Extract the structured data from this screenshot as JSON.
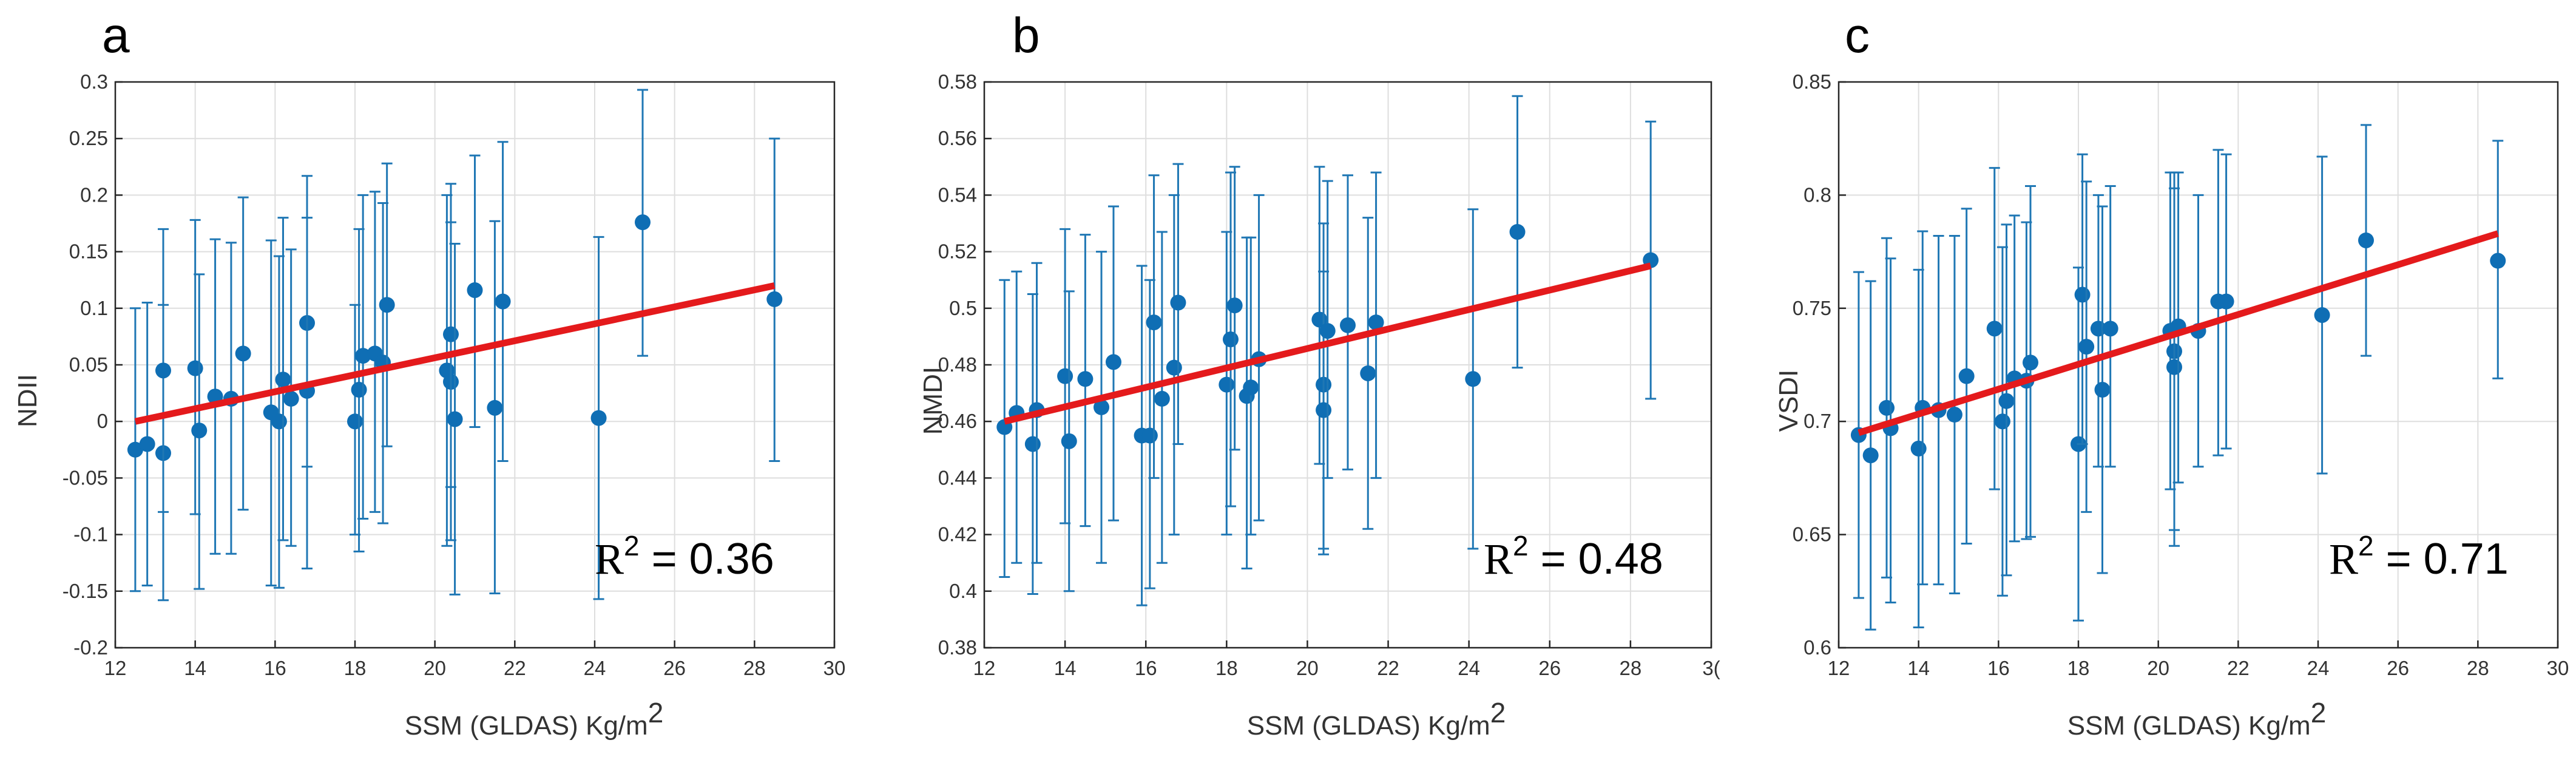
{
  "colors": {
    "marker": "#0f6eb4",
    "errorbar": "#1f77b4",
    "fit": "#e41a1c",
    "grid": "#dedede"
  },
  "chart_data": [
    {
      "type": "scatter",
      "panel": "a",
      "xlabel": "SSM (GLDAS) Kg/m",
      "xlabel_sup": "2",
      "ylabel": "NDII",
      "xlim": [
        12,
        30
      ],
      "ylim": [
        -0.2,
        0.3
      ],
      "xticks": [
        "12",
        "14",
        "16",
        "18",
        "20",
        "22",
        "24",
        "26",
        "28",
        "30"
      ],
      "yticks": [
        "-0.2",
        "-0.15",
        "-0.1",
        "-0.05",
        "0",
        "0.05",
        "0.1",
        "0.15",
        "0.2",
        "0.25",
        "0.3"
      ],
      "grid": true,
      "r2_text": "R",
      "r2_sup": "2",
      "r2_value": " = 0.36",
      "fit_line": {
        "x": [
          12.5,
          28.5
        ],
        "y": [
          0.0,
          0.12
        ]
      },
      "points": [
        {
          "x": 12.5,
          "y": -0.025,
          "lo": -0.15,
          "hi": 0.1
        },
        {
          "x": 12.8,
          "y": -0.02,
          "lo": -0.145,
          "hi": 0.105
        },
        {
          "x": 13.2,
          "y": -0.028,
          "lo": -0.158,
          "hi": 0.103
        },
        {
          "x": 13.2,
          "y": 0.045,
          "lo": -0.08,
          "hi": 0.17
        },
        {
          "x": 14.0,
          "y": 0.047,
          "lo": -0.082,
          "hi": 0.178
        },
        {
          "x": 14.1,
          "y": -0.008,
          "lo": -0.148,
          "hi": 0.13
        },
        {
          "x": 14.5,
          "y": 0.022,
          "lo": -0.117,
          "hi": 0.161
        },
        {
          "x": 14.9,
          "y": 0.02,
          "lo": -0.117,
          "hi": 0.158
        },
        {
          "x": 15.2,
          "y": 0.06,
          "lo": -0.078,
          "hi": 0.198
        },
        {
          "x": 15.9,
          "y": 0.008,
          "lo": -0.145,
          "hi": 0.16
        },
        {
          "x": 16.1,
          "y": 0.0,
          "lo": -0.147,
          "hi": 0.146
        },
        {
          "x": 16.2,
          "y": 0.037,
          "lo": -0.105,
          "hi": 0.18
        },
        {
          "x": 16.4,
          "y": 0.02,
          "lo": -0.11,
          "hi": 0.152
        },
        {
          "x": 16.8,
          "y": 0.087,
          "lo": -0.04,
          "hi": 0.217
        },
        {
          "x": 16.8,
          "y": 0.027,
          "lo": -0.13,
          "hi": 0.18
        },
        {
          "x": 18.0,
          "y": 0.0,
          "lo": -0.1,
          "hi": 0.103
        },
        {
          "x": 18.1,
          "y": 0.028,
          "lo": -0.115,
          "hi": 0.17
        },
        {
          "x": 18.2,
          "y": 0.058,
          "lo": -0.086,
          "hi": 0.2
        },
        {
          "x": 18.5,
          "y": 0.06,
          "lo": -0.08,
          "hi": 0.203
        },
        {
          "x": 18.7,
          "y": 0.052,
          "lo": -0.09,
          "hi": 0.193
        },
        {
          "x": 18.8,
          "y": 0.103,
          "lo": -0.022,
          "hi": 0.228
        },
        {
          "x": 20.3,
          "y": 0.045,
          "lo": -0.11,
          "hi": 0.2
        },
        {
          "x": 20.4,
          "y": 0.035,
          "lo": -0.105,
          "hi": 0.176
        },
        {
          "x": 20.4,
          "y": 0.077,
          "lo": -0.058,
          "hi": 0.21
        },
        {
          "x": 20.5,
          "y": 0.002,
          "lo": -0.153,
          "hi": 0.157
        },
        {
          "x": 21.0,
          "y": 0.116,
          "lo": -0.005,
          "hi": 0.235
        },
        {
          "x": 21.5,
          "y": 0.012,
          "lo": -0.152,
          "hi": 0.177
        },
        {
          "x": 21.7,
          "y": 0.106,
          "lo": -0.035,
          "hi": 0.247
        },
        {
          "x": 24.1,
          "y": 0.003,
          "lo": -0.157,
          "hi": 0.163
        },
        {
          "x": 25.2,
          "y": 0.176,
          "lo": 0.058,
          "hi": 0.293
        },
        {
          "x": 28.5,
          "y": 0.108,
          "lo": -0.035,
          "hi": 0.25
        }
      ]
    },
    {
      "type": "scatter",
      "panel": "b",
      "xlabel": "SSM (GLDAS) Kg/m",
      "xlabel_sup": "2",
      "ylabel": "NMDI",
      "xlim": [
        12,
        30
      ],
      "ylim": [
        0.38,
        0.58
      ],
      "xticks": [
        "12",
        "14",
        "16",
        "18",
        "20",
        "22",
        "24",
        "26",
        "28",
        "3("
      ],
      "yticks": [
        "0.38",
        "0.4",
        "0.42",
        "0.44",
        "0.46",
        "0.48",
        "0.5",
        "0.52",
        "0.54",
        "0.56",
        "0.58"
      ],
      "grid": true,
      "r2_text": "R",
      "r2_sup": "2",
      "r2_value": " = 0.48",
      "fit_line": {
        "x": [
          12.5,
          28.5
        ],
        "y": [
          0.46,
          0.515
        ]
      },
      "points": [
        {
          "x": 12.5,
          "y": 0.458,
          "lo": 0.405,
          "hi": 0.51
        },
        {
          "x": 12.8,
          "y": 0.463,
          "lo": 0.41,
          "hi": 0.513
        },
        {
          "x": 13.2,
          "y": 0.452,
          "lo": 0.399,
          "hi": 0.505
        },
        {
          "x": 13.3,
          "y": 0.464,
          "lo": 0.41,
          "hi": 0.516
        },
        {
          "x": 14.0,
          "y": 0.476,
          "lo": 0.424,
          "hi": 0.528
        },
        {
          "x": 14.1,
          "y": 0.453,
          "lo": 0.4,
          "hi": 0.506
        },
        {
          "x": 14.5,
          "y": 0.475,
          "lo": 0.423,
          "hi": 0.526
        },
        {
          "x": 14.9,
          "y": 0.465,
          "lo": 0.41,
          "hi": 0.52
        },
        {
          "x": 15.2,
          "y": 0.481,
          "lo": 0.425,
          "hi": 0.536
        },
        {
          "x": 15.9,
          "y": 0.455,
          "lo": 0.395,
          "hi": 0.515
        },
        {
          "x": 16.1,
          "y": 0.455,
          "lo": 0.401,
          "hi": 0.51
        },
        {
          "x": 16.2,
          "y": 0.495,
          "lo": 0.44,
          "hi": 0.547
        },
        {
          "x": 16.4,
          "y": 0.468,
          "lo": 0.41,
          "hi": 0.527
        },
        {
          "x": 16.7,
          "y": 0.479,
          "lo": 0.42,
          "hi": 0.54
        },
        {
          "x": 16.8,
          "y": 0.502,
          "lo": 0.452,
          "hi": 0.551
        },
        {
          "x": 18.0,
          "y": 0.473,
          "lo": 0.42,
          "hi": 0.527
        },
        {
          "x": 18.1,
          "y": 0.489,
          "lo": 0.43,
          "hi": 0.548
        },
        {
          "x": 18.2,
          "y": 0.501,
          "lo": 0.45,
          "hi": 0.55
        },
        {
          "x": 18.5,
          "y": 0.469,
          "lo": 0.408,
          "hi": 0.525
        },
        {
          "x": 18.6,
          "y": 0.472,
          "lo": 0.42,
          "hi": 0.525
        },
        {
          "x": 18.8,
          "y": 0.482,
          "lo": 0.425,
          "hi": 0.54
        },
        {
          "x": 20.3,
          "y": 0.496,
          "lo": 0.445,
          "hi": 0.55
        },
        {
          "x": 20.4,
          "y": 0.473,
          "lo": 0.413,
          "hi": 0.53
        },
        {
          "x": 20.4,
          "y": 0.464,
          "lo": 0.415,
          "hi": 0.513
        },
        {
          "x": 20.5,
          "y": 0.492,
          "lo": 0.44,
          "hi": 0.545
        },
        {
          "x": 21.0,
          "y": 0.494,
          "lo": 0.443,
          "hi": 0.547
        },
        {
          "x": 21.5,
          "y": 0.477,
          "lo": 0.422,
          "hi": 0.532
        },
        {
          "x": 21.7,
          "y": 0.495,
          "lo": 0.44,
          "hi": 0.548
        },
        {
          "x": 24.1,
          "y": 0.475,
          "lo": 0.415,
          "hi": 0.535
        },
        {
          "x": 25.2,
          "y": 0.527,
          "lo": 0.479,
          "hi": 0.575
        },
        {
          "x": 28.5,
          "y": 0.517,
          "lo": 0.468,
          "hi": 0.566
        }
      ]
    },
    {
      "type": "scatter",
      "panel": "c",
      "xlabel": "SSM (GLDAS) Kg/m",
      "xlabel_sup": "2",
      "ylabel": "VSDI",
      "xlim": [
        12,
        30
      ],
      "ylim": [
        0.6,
        0.85
      ],
      "xticks": [
        "12",
        "14",
        "16",
        "18",
        "20",
        "22",
        "24",
        "26",
        "28",
        "30"
      ],
      "yticks": [
        "0.6",
        "0.65",
        "0.7",
        "0.75",
        "0.8",
        "0.85"
      ],
      "grid": true,
      "r2_text": "R",
      "r2_sup": "2",
      "r2_value": " = 0.71",
      "fit_line": {
        "x": [
          12.5,
          28.5
        ],
        "y": [
          0.695,
          0.783
        ]
      },
      "points": [
        {
          "x": 12.5,
          "y": 0.694,
          "lo": 0.622,
          "hi": 0.766
        },
        {
          "x": 12.8,
          "y": 0.685,
          "lo": 0.608,
          "hi": 0.762
        },
        {
          "x": 13.2,
          "y": 0.706,
          "lo": 0.631,
          "hi": 0.781
        },
        {
          "x": 13.3,
          "y": 0.697,
          "lo": 0.62,
          "hi": 0.772
        },
        {
          "x": 14.0,
          "y": 0.688,
          "lo": 0.609,
          "hi": 0.767
        },
        {
          "x": 14.1,
          "y": 0.706,
          "lo": 0.628,
          "hi": 0.784
        },
        {
          "x": 14.5,
          "y": 0.705,
          "lo": 0.628,
          "hi": 0.782
        },
        {
          "x": 14.9,
          "y": 0.703,
          "lo": 0.624,
          "hi": 0.782
        },
        {
          "x": 15.2,
          "y": 0.72,
          "lo": 0.646,
          "hi": 0.794
        },
        {
          "x": 15.9,
          "y": 0.741,
          "lo": 0.67,
          "hi": 0.812
        },
        {
          "x": 16.1,
          "y": 0.7,
          "lo": 0.623,
          "hi": 0.777
        },
        {
          "x": 16.2,
          "y": 0.709,
          "lo": 0.632,
          "hi": 0.787
        },
        {
          "x": 16.4,
          "y": 0.719,
          "lo": 0.647,
          "hi": 0.791
        },
        {
          "x": 16.7,
          "y": 0.718,
          "lo": 0.648,
          "hi": 0.788
        },
        {
          "x": 16.8,
          "y": 0.726,
          "lo": 0.649,
          "hi": 0.804
        },
        {
          "x": 18.0,
          "y": 0.69,
          "lo": 0.612,
          "hi": 0.768
        },
        {
          "x": 18.1,
          "y": 0.756,
          "lo": 0.69,
          "hi": 0.818
        },
        {
          "x": 18.2,
          "y": 0.733,
          "lo": 0.66,
          "hi": 0.806
        },
        {
          "x": 18.5,
          "y": 0.741,
          "lo": 0.68,
          "hi": 0.8
        },
        {
          "x": 18.6,
          "y": 0.714,
          "lo": 0.633,
          "hi": 0.795
        },
        {
          "x": 18.8,
          "y": 0.741,
          "lo": 0.68,
          "hi": 0.804
        },
        {
          "x": 20.3,
          "y": 0.74,
          "lo": 0.67,
          "hi": 0.81
        },
        {
          "x": 20.4,
          "y": 0.731,
          "lo": 0.652,
          "hi": 0.81
        },
        {
          "x": 20.4,
          "y": 0.724,
          "lo": 0.645,
          "hi": 0.803
        },
        {
          "x": 20.5,
          "y": 0.742,
          "lo": 0.673,
          "hi": 0.81
        },
        {
          "x": 21.0,
          "y": 0.74,
          "lo": 0.68,
          "hi": 0.8
        },
        {
          "x": 21.5,
          "y": 0.753,
          "lo": 0.685,
          "hi": 0.82
        },
        {
          "x": 21.7,
          "y": 0.753,
          "lo": 0.688,
          "hi": 0.818
        },
        {
          "x": 24.1,
          "y": 0.747,
          "lo": 0.677,
          "hi": 0.817
        },
        {
          "x": 25.2,
          "y": 0.78,
          "lo": 0.729,
          "hi": 0.831
        },
        {
          "x": 28.5,
          "y": 0.771,
          "lo": 0.719,
          "hi": 0.824
        }
      ]
    }
  ]
}
